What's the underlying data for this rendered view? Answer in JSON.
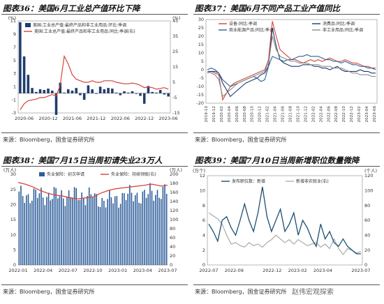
{
  "charts": [
    {
      "title": "图表36：美国6月工业总产值环比下降",
      "source": "来源：Bloomberg，国金证券研究所",
      "chart_data": {
        "type": "bar+line",
        "left_axis": {
          "unit": "(%)",
          "range": [
            -3,
            11
          ],
          "ticks": [
            11,
            9,
            7,
            5,
            3,
            1,
            -1,
            -3
          ]
        },
        "right_axis": {
          "unit": "(%)",
          "range": [
            -15,
            45
          ],
          "ticks": [
            45,
            35,
            25,
            15,
            5,
            -5,
            -15
          ]
        },
        "x_ticks": [
          "2020-06",
          "2020-12",
          "2021-06",
          "2021-12",
          "2022-06",
          "2022-12",
          "2023-06"
        ],
        "x_range": [
          "2020-05",
          "2023-06"
        ],
        "series": [
          {
            "name": "美国:工业总产值:最终产品和非工业用品:环比:季调",
            "type": "bar",
            "axis": "left",
            "x": [
              "2020-05",
              "2020-06",
              "2020-07",
              "2020-08",
              "2020-09",
              "2020-10",
              "2020-11",
              "2020-12",
              "2021-01",
              "2021-02",
              "2021-03",
              "2021-04",
              "2021-05",
              "2021-06",
              "2021-07",
              "2021-08",
              "2021-09",
              "2021-10",
              "2021-11",
              "2021-12",
              "2022-01",
              "2022-02",
              "2022-03",
              "2022-04",
              "2022-05",
              "2022-06",
              "2022-07",
              "2022-08",
              "2022-09",
              "2022-10",
              "2022-11",
              "2022-12",
              "2023-01",
              "2023-02",
              "2023-03",
              "2023-04",
              "2023-05",
              "2023-06"
            ],
            "values": [
              10.8,
              5.6,
              2.8,
              0.8,
              0.2,
              0.6,
              0.5,
              0.7,
              0.4,
              -3.3,
              1.6,
              0.1,
              0.6,
              0.4,
              0.8,
              -0.3,
              -1.0,
              1.2,
              0.6,
              -0.1,
              1.0,
              0.6,
              0.8,
              0.7,
              0.1,
              -0.3,
              0.3,
              0.1,
              0.3,
              -0.1,
              -0.4,
              -1.6,
              1.1,
              0.2,
              0.1,
              0.5,
              -0.2,
              -0.5
            ]
          },
          {
            "name": "美国:工业总产值:最终产品和非工业用品:同比:季调(右)",
            "type": "line",
            "axis": "right",
            "x": [
              "2020-05",
              "2020-06",
              "2020-07",
              "2020-08",
              "2020-09",
              "2020-10",
              "2020-11",
              "2020-12",
              "2021-01",
              "2021-02",
              "2021-03",
              "2021-04",
              "2021-05",
              "2021-06",
              "2021-07",
              "2021-08",
              "2021-09",
              "2021-10",
              "2021-11",
              "2021-12",
              "2022-01",
              "2022-02",
              "2022-03",
              "2022-04",
              "2022-05",
              "2022-06",
              "2022-07",
              "2022-08",
              "2022-09",
              "2022-10",
              "2022-11",
              "2022-12",
              "2023-01",
              "2023-02",
              "2023-03",
              "2023-04",
              "2023-05",
              "2023-06"
            ],
            "values": [
              -13,
              -9,
              -7,
              -6.5,
              -6,
              -5,
              -5,
              -4,
              -3,
              -4,
              3,
              22,
              17,
              10,
              7,
              6,
              5,
              5,
              6,
              5,
              5,
              6,
              6,
              6,
              5,
              4.5,
              4,
              4,
              4.5,
              4,
              3,
              1.5,
              2,
              1.5,
              0.5,
              1,
              1.5,
              0.5
            ]
          }
        ]
      }
    },
    {
      "title": "图表37：美国6月不同产品工业产值同比",
      "source": "来源：Bloomberg，国金证券研究所",
      "chart_data": {
        "type": "line",
        "y_axis": {
          "range": [
            -20,
            30
          ],
          "ticks": [
            30,
            25,
            20,
            15,
            10,
            5,
            0,
            -5,
            -10,
            -15,
            -20
          ]
        },
        "x_ticks": [
          "2019-10",
          "2019-12",
          "2020-02",
          "2020-04",
          "2020-06",
          "2020-08",
          "2020-10",
          "2020-12",
          "2021-02",
          "2021-04",
          "2021-06",
          "2021-08",
          "2021-10",
          "2021-12",
          "2022-02",
          "2022-04",
          "2022-06",
          "2022-08",
          "2022-10",
          "2022-12",
          "2023-02",
          "2023-04",
          "2023-06"
        ],
        "x_range": [
          "2019-10",
          "2023-06"
        ],
        "series": [
          {
            "name": "设备:同比:季调",
            "color": "#d4443a",
            "values": [
              -2,
              -1,
              -2,
              -3,
              -18,
              -14,
              -10,
              -8,
              -7,
              -6,
              -5,
              -4,
              -3,
              -2,
              -1,
              0,
              6,
              29,
              20,
              12,
              10,
              8,
              6,
              6,
              5,
              4,
              5,
              6,
              5,
              6,
              5,
              6,
              7,
              6,
              5,
              5,
              6,
              5,
              4,
              4,
              3,
              2,
              2,
              1,
              1
            ]
          },
          {
            "name": "消费品:同比:季调",
            "color": "#1c3a6b",
            "values": [
              -1,
              -1,
              -1,
              -2,
              -8,
              -12,
              -16,
              -14,
              -12,
              -10,
              -8,
              -7,
              -6,
              -5,
              -3,
              -2,
              2,
              25,
              14,
              6,
              4,
              3,
              2,
              2,
              2,
              3,
              3,
              3,
              2,
              2,
              1,
              1,
              0,
              1,
              2,
              0,
              -1,
              -1,
              -1,
              -1,
              0,
              -1,
              -1,
              -2,
              -2
            ]
          },
          {
            "name": "商业能源产品:同比:季调",
            "color": "#2d5f9a",
            "values": [
              0,
              1,
              0,
              -2,
              -6,
              -8,
              -10,
              -9,
              -8,
              -7,
              -6,
              -5,
              -4,
              -5,
              -7,
              -6,
              2,
              8,
              7,
              6,
              5,
              6,
              6,
              7,
              8,
              8,
              9,
              8,
              8,
              8,
              7,
              6,
              6,
              5,
              5,
              4,
              5,
              4,
              3,
              3,
              2,
              2,
              1,
              1,
              0
            ]
          },
          {
            "name": "非工业用品:同比:季调",
            "color": "#8c8c8c",
            "values": [
              -1,
              -2,
              -3,
              -6,
              -16,
              -14,
              -12,
              -10,
              -8,
              -7,
              -6,
              -5,
              -4,
              -3,
              -2,
              -1,
              4,
              20,
              12,
              8,
              7,
              6,
              5,
              5,
              4,
              4,
              4,
              3,
              3,
              3,
              2,
              2,
              2,
              1,
              1,
              1,
              0,
              -1,
              -2,
              -2,
              -3,
              -3,
              -3,
              -4,
              -4
            ]
          }
        ]
      }
    },
    {
      "title": "图表38：美国7月15日当周初请失业23万人",
      "source": "来源：Bloomberg，国金证券研究所",
      "chart_data": {
        "type": "bar+line",
        "left_axis": {
          "unit": "(万人)",
          "range": [
            0,
            30
          ],
          "ticks": [
            30,
            25,
            20,
            15,
            10,
            5,
            0
          ]
        },
        "right_axis": {
          "unit": "(万人)",
          "range": [
            0,
            200
          ],
          "ticks": [
            200,
            180,
            160,
            140,
            120,
            100,
            80,
            60,
            40,
            20,
            0
          ]
        },
        "x_ticks": [
          "2022-01",
          "2022-04",
          "2022-07",
          "2022-10",
          "2023-01",
          "2023-04",
          "2023-07"
        ],
        "x_range": [
          "2022-01",
          "2023-07"
        ],
        "series": [
          {
            "name": "失业保险：初次申请",
            "type": "bar",
            "axis": "left",
            "count": 81,
            "approx_range": [
              17,
              27
            ]
          },
          {
            "name": "失业保险：持续领取(右)",
            "type": "line",
            "axis": "right",
            "points": [
              [
                0,
                182
              ],
              [
                0.05,
                178
              ],
              [
                0.1,
                172
              ],
              [
                0.15,
                164
              ],
              [
                0.2,
                158
              ],
              [
                0.25,
                154
              ],
              [
                0.3,
                152
              ],
              [
                0.35,
                148
              ],
              [
                0.4,
                146
              ],
              [
                0.45,
                148
              ],
              [
                0.5,
                150
              ],
              [
                0.55,
                158
              ],
              [
                0.6,
                164
              ],
              [
                0.65,
                168
              ],
              [
                0.7,
                170
              ],
              [
                0.75,
                172
              ],
              [
                0.8,
                174
              ],
              [
                0.85,
                176
              ],
              [
                0.88,
                178
              ],
              [
                0.9,
                178
              ],
              [
                0.93,
                176
              ],
              [
                0.96,
                174
              ],
              [
                1.0,
                176
              ]
            ]
          }
        ]
      }
    },
    {
      "title": "图表39：美国7月10日当周新增职位数量微降",
      "source": "来源：Bloomberg，国金证券研究所",
      "chart_data": {
        "type": "line",
        "left_axis": {
          "unit": "(万个)",
          "range": [
            0,
            12
          ],
          "ticks": [
            12,
            10,
            8,
            6,
            4,
            2,
            0
          ]
        },
        "right_axis": {
          "unit": "(个人)",
          "range": [
            0,
            120
          ],
          "ticks": [
            120,
            100,
            80,
            60,
            40,
            20,
            0
          ]
        },
        "x_ticks": [
          "2022-07",
          "2022-09",
          "2022-12",
          "2023-02",
          "2023-04",
          "2023-07"
        ],
        "x_range": [
          "2022-07",
          "2023-07"
        ],
        "series": [
          {
            "name": "发布职位数：新增",
            "axis": "left",
            "color": "#1c4f73",
            "values": [
              5.5,
              4.5,
              3.2,
              6.0,
              6.5,
              5.0,
              4.0,
              6.0,
              8.2,
              6.0,
              4.5,
              7.0,
              10.5,
              6.5,
              4.5,
              6.0,
              7.5,
              4.5,
              5.5,
              7.0,
              4.0,
              6.0,
              5.0,
              3.5,
              2.5,
              5.5,
              3.5,
              4.5,
              3.0,
              2.5,
              3.5,
              2.5,
              2.0,
              1.5,
              1.5
            ]
          },
          {
            "name": "新增非农就业(右)",
            "axis": "right",
            "color": "#b0b0b0",
            "values": [
              70,
              66,
              62,
              55,
              40,
              28,
              30,
              26,
              24,
              30,
              26,
              28,
              24,
              30,
              34,
              40,
              35,
              30,
              34,
              28,
              34,
              30,
              26,
              28,
              30,
              24,
              28,
              22,
              35,
              22,
              14,
              22,
              20,
              16,
              18
            ]
          }
        ]
      }
    }
  ],
  "watermark": "赵伟宏观探索"
}
